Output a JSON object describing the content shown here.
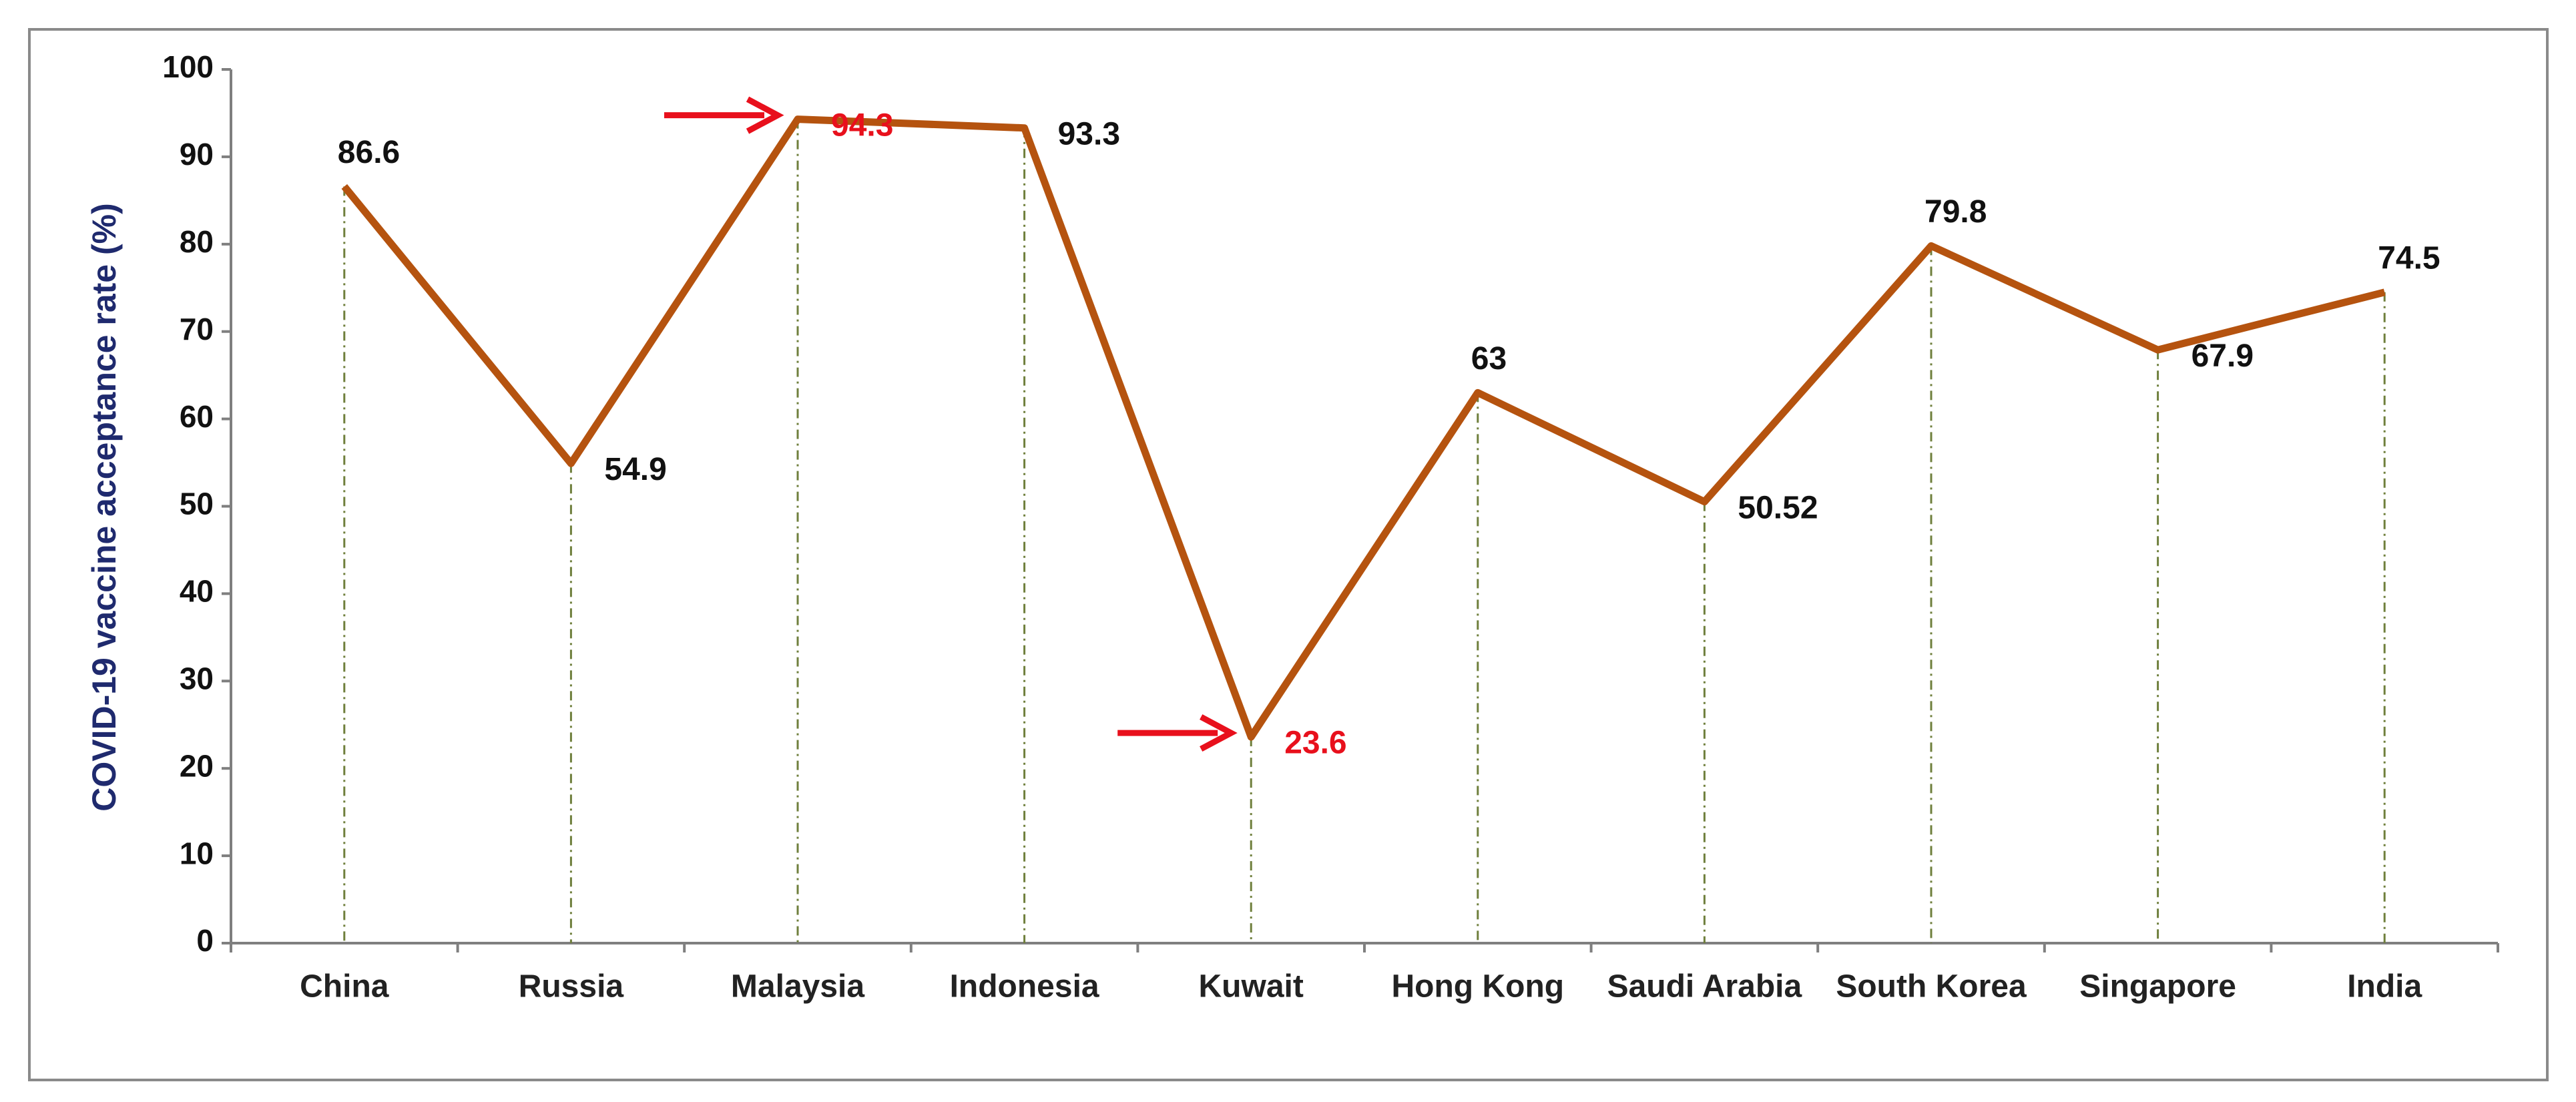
{
  "chart_data": {
    "type": "line",
    "y_label": "COVID-19 vaccine acceptance rate (%)",
    "categories": [
      "China",
      "Russia",
      "Malaysia",
      "Indonesia",
      "Kuwait",
      "Hong Kong",
      "Saudi Arabia",
      "South Korea",
      "Singapore",
      "India"
    ],
    "values": [
      86.6,
      54.9,
      94.3,
      93.3,
      23.6,
      63,
      50.52,
      79.8,
      67.9,
      74.5
    ],
    "color": "#b5530f",
    "value_label_colors": [
      "#111111",
      "#111111",
      "#e8101c",
      "#111111",
      "#e8101c",
      "#111111",
      "#111111",
      "#111111",
      "#111111",
      "#111111"
    ],
    "ylim": [
      0,
      100
    ],
    "yticks": [
      0,
      10,
      20,
      30,
      40,
      50,
      60,
      70,
      80,
      90,
      100
    ],
    "drop_lines": true
  }
}
